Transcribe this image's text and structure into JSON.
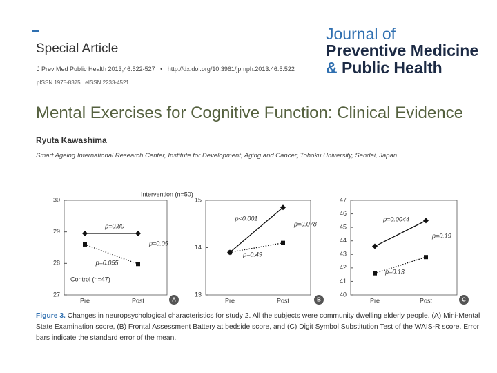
{
  "header": {
    "section": "Special Article",
    "citation": "J Prev Med Public Health 2013;46:522-527",
    "separator": "•",
    "doi": "http://dx.doi.org/10.3961/jpmph.2013.46.5.522",
    "issn": "pISSN 1975-8375   eISSN 2233-4521"
  },
  "journal": {
    "line1": "Journal of",
    "line2": "Preventive Medicine",
    "amp": "&",
    "line3": "Public Health"
  },
  "article": {
    "title": "Mental Exercises for Cognitive Function: Clinical Evidence",
    "author": "Ryuta Kawashima",
    "affiliation": "Smart Ageing International Research Center, Institute for Development, Aging and Cancer, Tohoku University, Sendai, Japan"
  },
  "figure": {
    "label": "Figure 3.",
    "caption": "Changes in neuropsychological characteristics for study 2. All the subjects were community dwelling elderly people. (A) Mini-Mental State Examination score, (B) Frontal Assessment Battery at bedside score, and (C) Digit Symbol Substitution Test of the WAIS-R score. Error bars indicate the standard error of the mean."
  },
  "chart_data": [
    {
      "type": "line",
      "panel": "A",
      "categories": [
        "Pre",
        "Post"
      ],
      "ylim": [
        27,
        30
      ],
      "yticks": [
        27,
        28,
        29,
        30
      ],
      "series": [
        {
          "name": "Intervention (n=50)",
          "color": "#111111",
          "style": "solid",
          "marker": "diamond",
          "values": [
            28.95,
            28.95
          ]
        },
        {
          "name": "Control (n=47)",
          "color": "#111111",
          "style": "dotted",
          "marker": "square",
          "values": [
            28.6,
            27.98
          ]
        }
      ],
      "annotations": [
        "p=0.80",
        "p=0.055",
        "p=0.05"
      ]
    },
    {
      "type": "line",
      "panel": "B",
      "categories": [
        "Pre",
        "Post"
      ],
      "ylim": [
        13,
        15
      ],
      "yticks": [
        13,
        14,
        15
      ],
      "series": [
        {
          "color": "#111111",
          "style": "solid",
          "marker": "diamond",
          "values": [
            13.9,
            14.85
          ]
        },
        {
          "color": "#111111",
          "style": "dotted",
          "marker": "square",
          "values": [
            13.9,
            14.1
          ]
        }
      ],
      "annotations": [
        "p<0.001",
        "p=0.49",
        "p=0.078"
      ]
    },
    {
      "type": "line",
      "panel": "C",
      "categories": [
        "Pre",
        "Post"
      ],
      "ylim": [
        40,
        47
      ],
      "yticks": [
        40,
        41,
        42,
        43,
        44,
        45,
        46,
        47
      ],
      "series": [
        {
          "color": "#111111",
          "style": "solid",
          "marker": "diamond",
          "values": [
            43.6,
            45.5
          ]
        },
        {
          "color": "#111111",
          "style": "dotted",
          "marker": "square",
          "values": [
            41.6,
            42.8
          ]
        }
      ],
      "annotations": [
        "p=0.0044",
        "p=0.13",
        "p=0.19"
      ]
    }
  ]
}
